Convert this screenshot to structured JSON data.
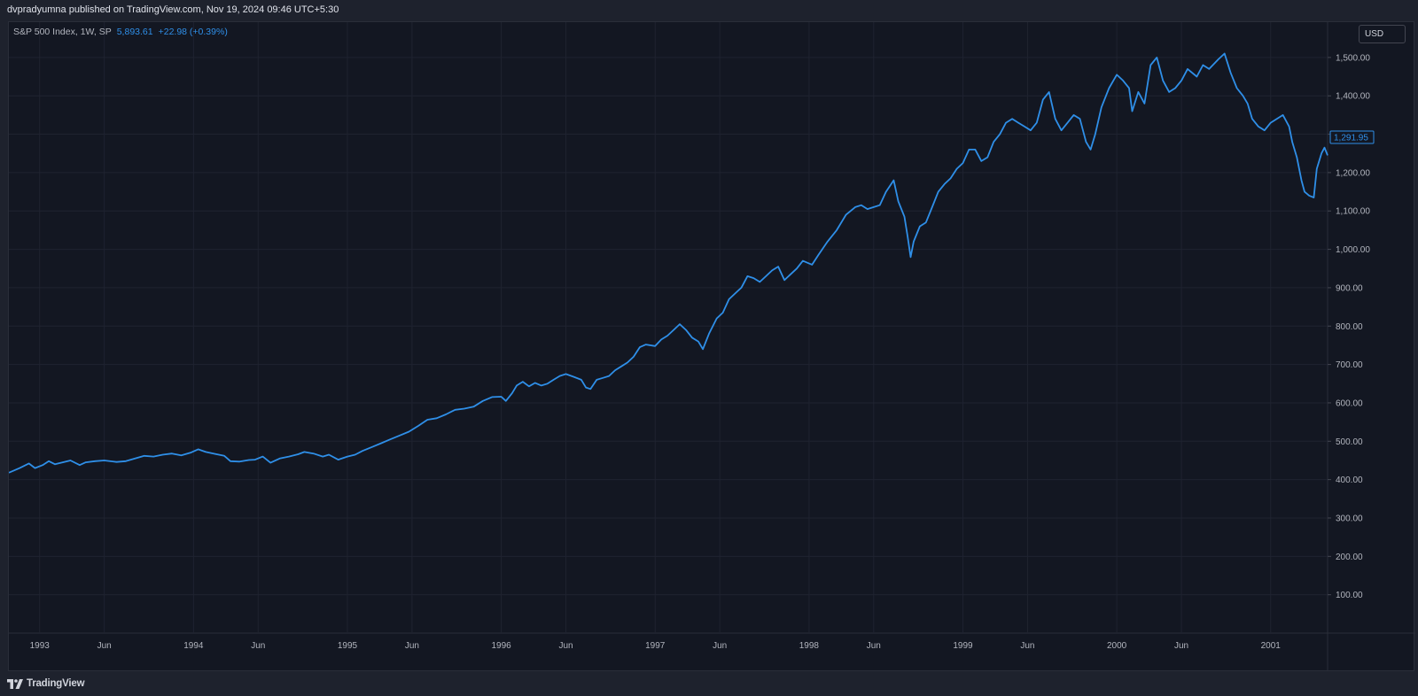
{
  "header": {
    "published_line": "dvpradyumna published on TradingView.com, Nov 19, 2024 09:46 UTC+5:30"
  },
  "legend": {
    "symbol": "S&P 500 Index, 1W, SP",
    "last_value": "5,893.61",
    "change": "+22.98 (+0.39%)"
  },
  "scale": {
    "currency": "USD",
    "last_price_label": "1,291.95"
  },
  "footer": {
    "brand": "TradingView",
    "brand_icon": "tradingview-logo-icon"
  },
  "colors": {
    "background": "#131722",
    "panel": "#1e222d",
    "grid": "#1f2330",
    "line": "#2f8fe8"
  },
  "chart_data": {
    "type": "line",
    "title": "S&P 500 Index, 1W, SP",
    "xlabel": "",
    "ylabel": "",
    "x_ticks": [
      {
        "label": "1993",
        "x": 1993.0
      },
      {
        "label": "Jun",
        "x": 1993.42
      },
      {
        "label": "1994",
        "x": 1994.0
      },
      {
        "label": "Jun",
        "x": 1994.42
      },
      {
        "label": "1995",
        "x": 1995.0
      },
      {
        "label": "Jun",
        "x": 1995.42
      },
      {
        "label": "1996",
        "x": 1996.0
      },
      {
        "label": "Jun",
        "x": 1996.42
      },
      {
        "label": "1997",
        "x": 1997.0
      },
      {
        "label": "Jun",
        "x": 1997.42
      },
      {
        "label": "1998",
        "x": 1998.0
      },
      {
        "label": "Jun",
        "x": 1998.42
      },
      {
        "label": "1999",
        "x": 1999.0
      },
      {
        "label": "Jun",
        "x": 1999.42
      },
      {
        "label": "2000",
        "x": 2000.0
      },
      {
        "label": "Jun",
        "x": 2000.42
      },
      {
        "label": "2001",
        "x": 2001.0
      }
    ],
    "y_ticks": [
      "100.00",
      "200.00",
      "300.00",
      "400.00",
      "500.00",
      "600.00",
      "700.00",
      "800.00",
      "900.00",
      "1,000.00",
      "1,100.00",
      "1,200.00",
      "1,300.00",
      "1,400.00",
      "1,500.00"
    ],
    "y_tick_values": [
      100,
      200,
      300,
      400,
      500,
      600,
      700,
      800,
      900,
      1000,
      1100,
      1200,
      1300,
      1400,
      1500
    ],
    "xlim": [
      1992.8,
      2001.37
    ],
    "ylim": [
      0,
      1592
    ],
    "grid": true,
    "series": [
      {
        "color": "#2f8fe8",
        "points": [
          [
            1992.8,
            418
          ],
          [
            1992.87,
            430
          ],
          [
            1992.93,
            442
          ],
          [
            1992.97,
            430
          ],
          [
            1993.02,
            438
          ],
          [
            1993.06,
            448
          ],
          [
            1993.1,
            440
          ],
          [
            1993.15,
            445
          ],
          [
            1993.2,
            450
          ],
          [
            1993.26,
            438
          ],
          [
            1993.3,
            445
          ],
          [
            1993.36,
            448
          ],
          [
            1993.42,
            450
          ],
          [
            1993.5,
            446
          ],
          [
            1993.56,
            448
          ],
          [
            1993.62,
            455
          ],
          [
            1993.68,
            462
          ],
          [
            1993.74,
            460
          ],
          [
            1993.8,
            465
          ],
          [
            1993.86,
            468
          ],
          [
            1993.92,
            463
          ],
          [
            1993.98,
            470
          ],
          [
            1994.03,
            479
          ],
          [
            1994.08,
            472
          ],
          [
            1994.14,
            467
          ],
          [
            1994.2,
            462
          ],
          [
            1994.24,
            448
          ],
          [
            1994.3,
            447
          ],
          [
            1994.36,
            451
          ],
          [
            1994.4,
            452
          ],
          [
            1994.45,
            460
          ],
          [
            1994.5,
            444
          ],
          [
            1994.56,
            455
          ],
          [
            1994.62,
            460
          ],
          [
            1994.68,
            466
          ],
          [
            1994.72,
            472
          ],
          [
            1994.78,
            468
          ],
          [
            1994.84,
            460
          ],
          [
            1994.88,
            465
          ],
          [
            1994.94,
            452
          ],
          [
            1995.0,
            460
          ],
          [
            1995.05,
            465
          ],
          [
            1995.1,
            475
          ],
          [
            1995.16,
            485
          ],
          [
            1995.22,
            495
          ],
          [
            1995.28,
            505
          ],
          [
            1995.34,
            515
          ],
          [
            1995.4,
            525
          ],
          [
            1995.46,
            540
          ],
          [
            1995.52,
            556
          ],
          [
            1995.58,
            560
          ],
          [
            1995.64,
            570
          ],
          [
            1995.7,
            582
          ],
          [
            1995.76,
            585
          ],
          [
            1995.82,
            590
          ],
          [
            1995.88,
            605
          ],
          [
            1995.94,
            615
          ],
          [
            1996.0,
            616
          ],
          [
            1996.03,
            605
          ],
          [
            1996.07,
            625
          ],
          [
            1996.1,
            645
          ],
          [
            1996.14,
            655
          ],
          [
            1996.18,
            643
          ],
          [
            1996.22,
            652
          ],
          [
            1996.26,
            645
          ],
          [
            1996.3,
            650
          ],
          [
            1996.34,
            660
          ],
          [
            1996.38,
            670
          ],
          [
            1996.42,
            675
          ],
          [
            1996.47,
            668
          ],
          [
            1996.52,
            660
          ],
          [
            1996.55,
            640
          ],
          [
            1996.58,
            636
          ],
          [
            1996.62,
            660
          ],
          [
            1996.66,
            665
          ],
          [
            1996.7,
            670
          ],
          [
            1996.74,
            685
          ],
          [
            1996.78,
            695
          ],
          [
            1996.82,
            705
          ],
          [
            1996.86,
            720
          ],
          [
            1996.9,
            745
          ],
          [
            1996.94,
            752
          ],
          [
            1997.0,
            748
          ],
          [
            1997.04,
            765
          ],
          [
            1997.08,
            775
          ],
          [
            1997.12,
            790
          ],
          [
            1997.16,
            805
          ],
          [
            1997.2,
            790
          ],
          [
            1997.24,
            770
          ],
          [
            1997.28,
            760
          ],
          [
            1997.31,
            740
          ],
          [
            1997.35,
            780
          ],
          [
            1997.4,
            820
          ],
          [
            1997.44,
            835
          ],
          [
            1997.48,
            870
          ],
          [
            1997.52,
            885
          ],
          [
            1997.56,
            900
          ],
          [
            1997.6,
            930
          ],
          [
            1997.64,
            925
          ],
          [
            1997.68,
            915
          ],
          [
            1997.72,
            930
          ],
          [
            1997.76,
            945
          ],
          [
            1997.8,
            955
          ],
          [
            1997.84,
            920
          ],
          [
            1997.88,
            935
          ],
          [
            1997.92,
            950
          ],
          [
            1997.96,
            970
          ],
          [
            1998.02,
            960
          ],
          [
            1998.06,
            985
          ],
          [
            1998.12,
            1020
          ],
          [
            1998.18,
            1050
          ],
          [
            1998.24,
            1090
          ],
          [
            1998.3,
            1110
          ],
          [
            1998.34,
            1115
          ],
          [
            1998.38,
            1105
          ],
          [
            1998.42,
            1110
          ],
          [
            1998.46,
            1115
          ],
          [
            1998.5,
            1150
          ],
          [
            1998.55,
            1180
          ],
          [
            1998.58,
            1125
          ],
          [
            1998.62,
            1085
          ],
          [
            1998.64,
            1035
          ],
          [
            1998.66,
            980
          ],
          [
            1998.68,
            1020
          ],
          [
            1998.72,
            1060
          ],
          [
            1998.76,
            1070
          ],
          [
            1998.8,
            1110
          ],
          [
            1998.84,
            1150
          ],
          [
            1998.88,
            1170
          ],
          [
            1998.92,
            1185
          ],
          [
            1998.96,
            1210
          ],
          [
            1999.0,
            1225
          ],
          [
            1999.04,
            1260
          ],
          [
            1999.08,
            1260
          ],
          [
            1999.12,
            1230
          ],
          [
            1999.16,
            1240
          ],
          [
            1999.2,
            1280
          ],
          [
            1999.24,
            1300
          ],
          [
            1999.28,
            1330
          ],
          [
            1999.32,
            1340
          ],
          [
            1999.36,
            1330
          ],
          [
            1999.4,
            1320
          ],
          [
            1999.44,
            1310
          ],
          [
            1999.48,
            1330
          ],
          [
            1999.52,
            1390
          ],
          [
            1999.56,
            1410
          ],
          [
            1999.6,
            1340
          ],
          [
            1999.64,
            1310
          ],
          [
            1999.68,
            1330
          ],
          [
            1999.72,
            1350
          ],
          [
            1999.76,
            1340
          ],
          [
            1999.8,
            1280
          ],
          [
            1999.83,
            1260
          ],
          [
            1999.86,
            1300
          ],
          [
            1999.9,
            1370
          ],
          [
            1999.95,
            1420
          ],
          [
            2000.0,
            1455
          ],
          [
            2000.04,
            1440
          ],
          [
            2000.08,
            1420
          ],
          [
            2000.1,
            1360
          ],
          [
            2000.14,
            1410
          ],
          [
            2000.18,
            1380
          ],
          [
            2000.22,
            1480
          ],
          [
            2000.26,
            1500
          ],
          [
            2000.3,
            1440
          ],
          [
            2000.34,
            1410
          ],
          [
            2000.38,
            1420
          ],
          [
            2000.42,
            1440
          ],
          [
            2000.46,
            1470
          ],
          [
            2000.52,
            1450
          ],
          [
            2000.56,
            1480
          ],
          [
            2000.6,
            1470
          ],
          [
            2000.66,
            1495
          ],
          [
            2000.7,
            1510
          ],
          [
            2000.74,
            1460
          ],
          [
            2000.78,
            1420
          ],
          [
            2000.82,
            1400
          ],
          [
            2000.85,
            1380
          ],
          [
            2000.88,
            1340
          ],
          [
            2000.92,
            1320
          ],
          [
            2000.96,
            1310
          ],
          [
            2001.0,
            1330
          ],
          [
            2001.04,
            1340
          ],
          [
            2001.08,
            1350
          ],
          [
            2001.12,
            1320
          ],
          [
            2001.14,
            1280
          ],
          [
            2001.17,
            1240
          ],
          [
            2001.2,
            1180
          ],
          [
            2001.22,
            1150
          ],
          [
            2001.25,
            1140
          ],
          [
            2001.28,
            1135
          ],
          [
            2001.3,
            1210
          ],
          [
            2001.33,
            1250
          ],
          [
            2001.35,
            1265
          ],
          [
            2001.37,
            1245
          ]
        ]
      }
    ]
  }
}
